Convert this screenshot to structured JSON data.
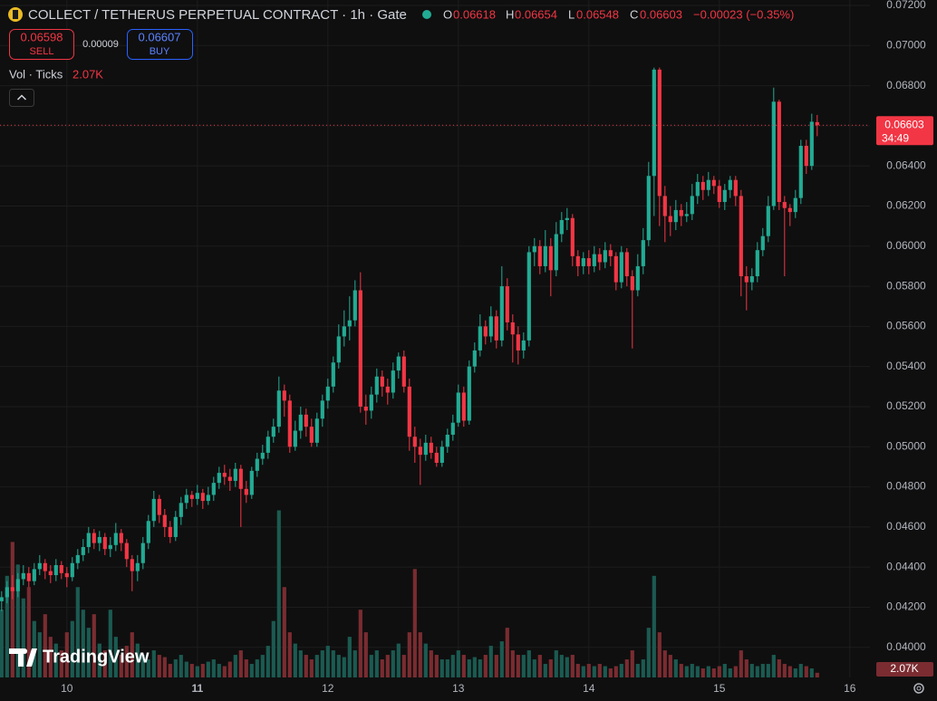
{
  "header": {
    "title": "COLLECT / TETHERUS PERPETUAL CONTRACT · 1h · Gate",
    "o_label": "O",
    "open": "0.06618",
    "h_label": "H",
    "high": "0.06654",
    "l_label": "L",
    "low": "0.06548",
    "c_label": "C",
    "close": "0.06603",
    "change": "−0.00023 (−0.35%)"
  },
  "trade": {
    "sell_price": "0.06598",
    "sell": "SELL",
    "spread": "0.00009",
    "buy_price": "0.06607",
    "buy": "BUY"
  },
  "indicator": {
    "name": "Vol · Ticks",
    "value": "2.07K"
  },
  "logo": "TradingView",
  "chart_data": {
    "type": "candlestick",
    "x": [
      0,
      1,
      2,
      3,
      4,
      5,
      6,
      7,
      8,
      9,
      10,
      11,
      12,
      13,
      14,
      15,
      16,
      17,
      18,
      19,
      20,
      21,
      22,
      23,
      24,
      25,
      26,
      27,
      28,
      29,
      30,
      31,
      32,
      33,
      34,
      35,
      36,
      37,
      38,
      39,
      40,
      41,
      42,
      43,
      44,
      45,
      46,
      47,
      48,
      49,
      50,
      51,
      52,
      53,
      54,
      55,
      56,
      57,
      58,
      59,
      60,
      61,
      62,
      63,
      64,
      65,
      66,
      67,
      68,
      69,
      70,
      71,
      72,
      73,
      74,
      75,
      76,
      77,
      78,
      79,
      80,
      81,
      82,
      83,
      84,
      85,
      86,
      87,
      88,
      89,
      90,
      91,
      92,
      93,
      94,
      95,
      96,
      97,
      98,
      99,
      100,
      101,
      102,
      103,
      104,
      105,
      106,
      107,
      108,
      109,
      110,
      111,
      112,
      113,
      114,
      115,
      116,
      117,
      118,
      119,
      120,
      121,
      122,
      123,
      124,
      125,
      126,
      127,
      128,
      129,
      130,
      131,
      132,
      133,
      134,
      135,
      136,
      137,
      138,
      139,
      140,
      141,
      142,
      143,
      144,
      145,
      146,
      147,
      148,
      149,
      150
    ],
    "open": [
      0.0423,
      0.0425,
      0.043,
      0.0428,
      0.0434,
      0.0437,
      0.0433,
      0.0439,
      0.0442,
      0.0438,
      0.0436,
      0.0441,
      0.0437,
      0.0435,
      0.0442,
      0.0446,
      0.045,
      0.0457,
      0.0452,
      0.0455,
      0.0449,
      0.0451,
      0.0457,
      0.0452,
      0.0444,
      0.0438,
      0.0442,
      0.0452,
      0.0463,
      0.0474,
      0.0466,
      0.046,
      0.0455,
      0.0465,
      0.0472,
      0.0476,
      0.0474,
      0.0477,
      0.0473,
      0.0476,
      0.0482,
      0.0487,
      0.0485,
      0.0483,
      0.0489,
      0.0479,
      0.0476,
      0.0488,
      0.0494,
      0.0497,
      0.0505,
      0.051,
      0.0528,
      0.0523,
      0.05,
      0.0508,
      0.0516,
      0.051,
      0.0502,
      0.0514,
      0.0523,
      0.053,
      0.0542,
      0.0555,
      0.056,
      0.0563,
      0.0578,
      0.052,
      0.0518,
      0.0526,
      0.0535,
      0.053,
      0.0527,
      0.0538,
      0.0545,
      0.053,
      0.0505,
      0.05,
      0.0496,
      0.0502,
      0.0497,
      0.0492,
      0.05,
      0.0506,
      0.0512,
      0.0527,
      0.0513,
      0.054,
      0.0548,
      0.056,
      0.0555,
      0.0565,
      0.0553,
      0.058,
      0.0562,
      0.0556,
      0.0548,
      0.0553,
      0.0597,
      0.06,
      0.059,
      0.06,
      0.0588,
      0.0606,
      0.0613,
      0.0614,
      0.0595,
      0.059,
      0.0594,
      0.059,
      0.0596,
      0.0592,
      0.0598,
      0.0595,
      0.0582,
      0.0597,
      0.0585,
      0.0578,
      0.059,
      0.0603,
      0.0635,
      0.0688,
      0.0625,
      0.0615,
      0.0612,
      0.0618,
      0.0615,
      0.0616,
      0.0625,
      0.0632,
      0.0628,
      0.0633,
      0.063,
      0.0622,
      0.0628,
      0.0633,
      0.0625,
      0.0585,
      0.0582,
      0.0585,
      0.0598,
      0.0605,
      0.062,
      0.0672,
      0.0622,
      0.0619,
      0.0617,
      0.0624,
      0.065,
      0.064,
      0.06618
    ],
    "high": [
      0.0428,
      0.0433,
      0.0436,
      0.0437,
      0.0441,
      0.044,
      0.0442,
      0.0446,
      0.0444,
      0.0441,
      0.0444,
      0.0443,
      0.044,
      0.0445,
      0.0449,
      0.0454,
      0.046,
      0.0459,
      0.0458,
      0.0457,
      0.0455,
      0.0462,
      0.0459,
      0.0454,
      0.0446,
      0.0446,
      0.0455,
      0.0466,
      0.0478,
      0.0476,
      0.0469,
      0.0463,
      0.0468,
      0.0475,
      0.0479,
      0.0478,
      0.0481,
      0.0479,
      0.048,
      0.0485,
      0.049,
      0.0491,
      0.0489,
      0.0492,
      0.0491,
      0.0483,
      0.049,
      0.0497,
      0.0501,
      0.0508,
      0.0514,
      0.0535,
      0.0531,
      0.0526,
      0.0513,
      0.052,
      0.0519,
      0.0514,
      0.0517,
      0.0526,
      0.0534,
      0.0545,
      0.0561,
      0.0568,
      0.0575,
      0.0583,
      0.0587,
      0.0526,
      0.053,
      0.0539,
      0.0538,
      0.0534,
      0.0542,
      0.0547,
      0.0548,
      0.0534,
      0.051,
      0.0504,
      0.0506,
      0.0505,
      0.05,
      0.0503,
      0.0509,
      0.0516,
      0.0531,
      0.053,
      0.0543,
      0.0552,
      0.0566,
      0.0563,
      0.057,
      0.0568,
      0.059,
      0.0584,
      0.0566,
      0.056,
      0.0557,
      0.06,
      0.0604,
      0.0603,
      0.0608,
      0.0604,
      0.0612,
      0.0617,
      0.0619,
      0.0616,
      0.0598,
      0.0597,
      0.0598,
      0.06,
      0.0599,
      0.0602,
      0.0601,
      0.0597,
      0.06,
      0.0599,
      0.0588,
      0.0596,
      0.0609,
      0.0642,
      0.0689,
      0.0689,
      0.063,
      0.062,
      0.0623,
      0.0621,
      0.0622,
      0.0631,
      0.0636,
      0.0635,
      0.0637,
      0.0635,
      0.0633,
      0.0631,
      0.0635,
      0.0635,
      0.0628,
      0.059,
      0.0589,
      0.0602,
      0.0609,
      0.0625,
      0.0679,
      0.0673,
      0.0625,
      0.0621,
      0.0628,
      0.0653,
      0.0653,
      0.0666,
      0.06654
    ],
    "low": [
      0.0418,
      0.0422,
      0.0424,
      0.0425,
      0.0431,
      0.043,
      0.0431,
      0.0436,
      0.0434,
      0.0432,
      0.0433,
      0.0434,
      0.043,
      0.0433,
      0.0439,
      0.0443,
      0.0447,
      0.0449,
      0.0448,
      0.0446,
      0.0445,
      0.0448,
      0.0448,
      0.044,
      0.0428,
      0.0433,
      0.0439,
      0.0449,
      0.046,
      0.0462,
      0.0455,
      0.0452,
      0.0453,
      0.0461,
      0.0469,
      0.047,
      0.0471,
      0.0469,
      0.0471,
      0.0473,
      0.0479,
      0.0481,
      0.0478,
      0.048,
      0.046,
      0.0472,
      0.0474,
      0.0485,
      0.0491,
      0.0494,
      0.0502,
      0.0507,
      0.0515,
      0.0497,
      0.0498,
      0.0504,
      0.0505,
      0.05,
      0.05,
      0.051,
      0.0519,
      0.0527,
      0.0539,
      0.055,
      0.0553,
      0.056,
      0.0517,
      0.0511,
      0.0514,
      0.0522,
      0.0525,
      0.0521,
      0.0524,
      0.0534,
      0.0527,
      0.0498,
      0.0492,
      0.0481,
      0.0493,
      0.0494,
      0.049,
      0.049,
      0.0497,
      0.0503,
      0.051,
      0.051,
      0.0511,
      0.0537,
      0.0545,
      0.0551,
      0.0552,
      0.0549,
      0.055,
      0.0558,
      0.0542,
      0.0541,
      0.0544,
      0.055,
      0.059,
      0.0586,
      0.0587,
      0.0575,
      0.0585,
      0.0602,
      0.0608,
      0.059,
      0.0585,
      0.0586,
      0.0586,
      0.0587,
      0.0588,
      0.0589,
      0.059,
      0.0578,
      0.0579,
      0.058,
      0.0549,
      0.0575,
      0.0586,
      0.06,
      0.0615,
      0.061,
      0.0602,
      0.0605,
      0.0608,
      0.061,
      0.0612,
      0.0613,
      0.0621,
      0.0623,
      0.0625,
      0.0626,
      0.0619,
      0.0618,
      0.0624,
      0.062,
      0.0575,
      0.0568,
      0.0578,
      0.0582,
      0.0595,
      0.0602,
      0.0618,
      0.0618,
      0.0585,
      0.061,
      0.0614,
      0.0621,
      0.0636,
      0.0638,
      0.06548
    ],
    "close": [
      0.0425,
      0.043,
      0.0428,
      0.0434,
      0.0437,
      0.0433,
      0.0439,
      0.0442,
      0.0438,
      0.0436,
      0.0441,
      0.0437,
      0.0435,
      0.0442,
      0.0446,
      0.045,
      0.0457,
      0.0452,
      0.0455,
      0.0449,
      0.0451,
      0.0457,
      0.0452,
      0.0444,
      0.0438,
      0.0442,
      0.0452,
      0.0463,
      0.0474,
      0.0466,
      0.046,
      0.0455,
      0.0465,
      0.0472,
      0.0476,
      0.0474,
      0.0477,
      0.0473,
      0.0476,
      0.0482,
      0.0487,
      0.0485,
      0.0483,
      0.0489,
      0.0479,
      0.0476,
      0.0488,
      0.0494,
      0.0497,
      0.0505,
      0.051,
      0.0528,
      0.0523,
      0.05,
      0.0508,
      0.0516,
      0.051,
      0.0502,
      0.0514,
      0.0523,
      0.053,
      0.0542,
      0.0555,
      0.056,
      0.0563,
      0.0578,
      0.052,
      0.0518,
      0.0526,
      0.0535,
      0.053,
      0.0527,
      0.0538,
      0.0545,
      0.053,
      0.0505,
      0.05,
      0.0496,
      0.0502,
      0.0497,
      0.0492,
      0.05,
      0.0506,
      0.0512,
      0.0527,
      0.0513,
      0.054,
      0.0548,
      0.056,
      0.0555,
      0.0565,
      0.0553,
      0.058,
      0.0562,
      0.0556,
      0.0548,
      0.0553,
      0.0597,
      0.06,
      0.059,
      0.06,
      0.0588,
      0.0606,
      0.0613,
      0.0614,
      0.0595,
      0.059,
      0.0594,
      0.059,
      0.0596,
      0.0592,
      0.0598,
      0.0595,
      0.0582,
      0.0597,
      0.0585,
      0.0578,
      0.059,
      0.0603,
      0.0635,
      0.0688,
      0.0625,
      0.0615,
      0.0612,
      0.0618,
      0.0615,
      0.0616,
      0.0625,
      0.0632,
      0.0628,
      0.0633,
      0.063,
      0.0622,
      0.0628,
      0.0633,
      0.0625,
      0.0585,
      0.0582,
      0.0585,
      0.0598,
      0.0605,
      0.062,
      0.0672,
      0.0622,
      0.0619,
      0.0617,
      0.0624,
      0.065,
      0.064,
      0.0662,
      0.06603
    ],
    "volume": [
      30,
      45,
      60,
      50,
      35,
      40,
      25,
      20,
      28,
      18,
      15,
      12,
      20,
      25,
      40,
      30,
      22,
      28,
      15,
      12,
      30,
      18,
      10,
      14,
      20,
      15,
      10,
      8,
      12,
      10,
      9,
      6,
      8,
      10,
      7,
      6,
      5,
      6,
      7,
      8,
      6,
      5,
      7,
      10,
      12,
      8,
      6,
      8,
      10,
      14,
      25,
      74,
      40,
      20,
      15,
      12,
      10,
      8,
      10,
      12,
      14,
      12,
      10,
      9,
      18,
      12,
      30,
      20,
      10,
      12,
      8,
      10,
      12,
      15,
      10,
      20,
      48,
      20,
      15,
      12,
      10,
      8,
      8,
      10,
      12,
      10,
      8,
      9,
      8,
      10,
      14,
      10,
      16,
      22,
      12,
      10,
      10,
      12,
      8,
      10,
      6,
      8,
      12,
      10,
      9,
      10,
      6,
      5,
      6,
      5,
      6,
      5,
      4,
      5,
      6,
      8,
      12,
      6,
      8,
      22,
      45,
      20,
      12,
      10,
      8,
      6,
      5,
      6,
      5,
      4,
      5,
      4,
      5,
      6,
      4,
      5,
      12,
      8,
      6,
      5,
      6,
      6,
      10,
      8,
      6,
      5,
      4,
      6,
      5,
      4,
      2.07
    ],
    "colors": {
      "up": "#22ab94",
      "down": "#f23645",
      "volume_up": "#1b5a51",
      "volume_down": "#7a2c31"
    },
    "xlim": [
      -0.3,
      159.7
    ],
    "xticks": [
      {
        "value": 12,
        "label": "10"
      },
      {
        "value": 36,
        "label": "11"
      },
      {
        "value": 60,
        "label": "12"
      },
      {
        "value": 84,
        "label": "13"
      },
      {
        "value": 108,
        "label": "14"
      },
      {
        "value": 132,
        "label": "15"
      },
      {
        "value": 156,
        "label": "16"
      }
    ],
    "ylim": [
      0.0385,
      0.07227
    ],
    "yticks": [
      {
        "value": 0.04,
        "label": "0.04000"
      },
      {
        "value": 0.042,
        "label": "0.04200"
      },
      {
        "value": 0.044,
        "label": "0.04400"
      },
      {
        "value": 0.046,
        "label": "0.04600"
      },
      {
        "value": 0.048,
        "label": "0.04800"
      },
      {
        "value": 0.05,
        "label": "0.05000"
      },
      {
        "value": 0.052,
        "label": "0.05200"
      },
      {
        "value": 0.054,
        "label": "0.05400"
      },
      {
        "value": 0.056,
        "label": "0.05600"
      },
      {
        "value": 0.058,
        "label": "0.05800"
      },
      {
        "value": 0.06,
        "label": "0.06000"
      },
      {
        "value": 0.062,
        "label": "0.06200"
      },
      {
        "value": 0.064,
        "label": "0.06400"
      },
      {
        "value": 0.066,
        "label": "0.06600"
      },
      {
        "value": 0.068,
        "label": "0.06800"
      },
      {
        "value": 0.07,
        "label": "0.07000"
      },
      {
        "value": 0.072,
        "label": "0.07200"
      }
    ],
    "y2lim": [
      0,
      300
    ],
    "grid": true,
    "last_price_label": "0.06603",
    "countdown": "34:49",
    "last_volume_label": "2.07K"
  }
}
